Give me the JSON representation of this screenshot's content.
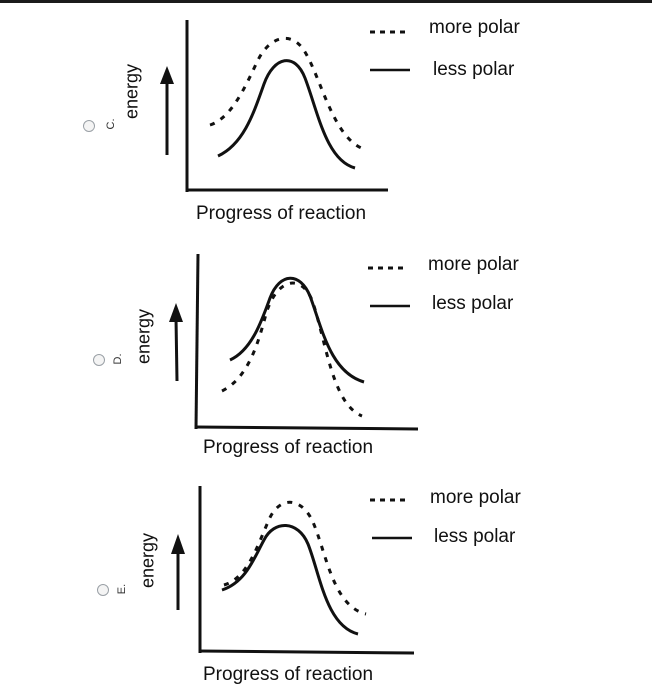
{
  "options": [
    {
      "letter": "C.",
      "ylabel": "energy",
      "xlabel": "Progress of reaction",
      "legend": {
        "dashed": "more polar",
        "solid": "less polar"
      }
    },
    {
      "letter": "D.",
      "ylabel": "energy",
      "xlabel": "Progress of reaction",
      "legend": {
        "dashed": "more polar",
        "solid": "less polar"
      }
    },
    {
      "letter": "E.",
      "ylabel": "energy",
      "xlabel": "Progress of reaction",
      "legend": {
        "dashed": "more polar",
        "solid": "less polar"
      }
    }
  ]
}
